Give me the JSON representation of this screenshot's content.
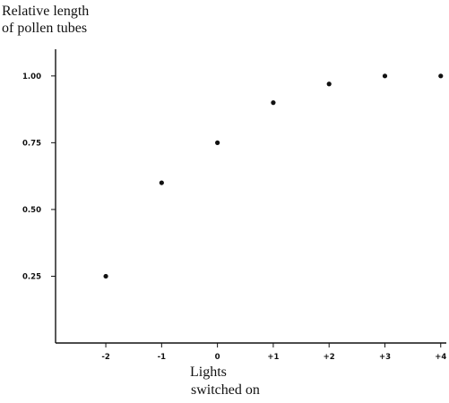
{
  "chart_data": {
    "type": "scatter",
    "title": "",
    "ylabel_lines": [
      "Relative length",
      "of pollen tubes"
    ],
    "xlabel_lines": [
      "Lights",
      "switched on"
    ],
    "x_tick_labels": [
      "-2",
      "-1",
      "0",
      "+1",
      "+2",
      "+3",
      "+4"
    ],
    "y_tick_labels": [
      "0.25",
      "0.50",
      "0.75",
      "1.00"
    ],
    "x": [
      -2,
      -1,
      0,
      1,
      2,
      3,
      4
    ],
    "y": [
      0.25,
      0.6,
      0.75,
      0.9,
      0.97,
      1.0,
      1.0
    ],
    "xlim": [
      -2.9,
      4.1
    ],
    "ylim": [
      0.0,
      1.1
    ],
    "grid": false
  }
}
